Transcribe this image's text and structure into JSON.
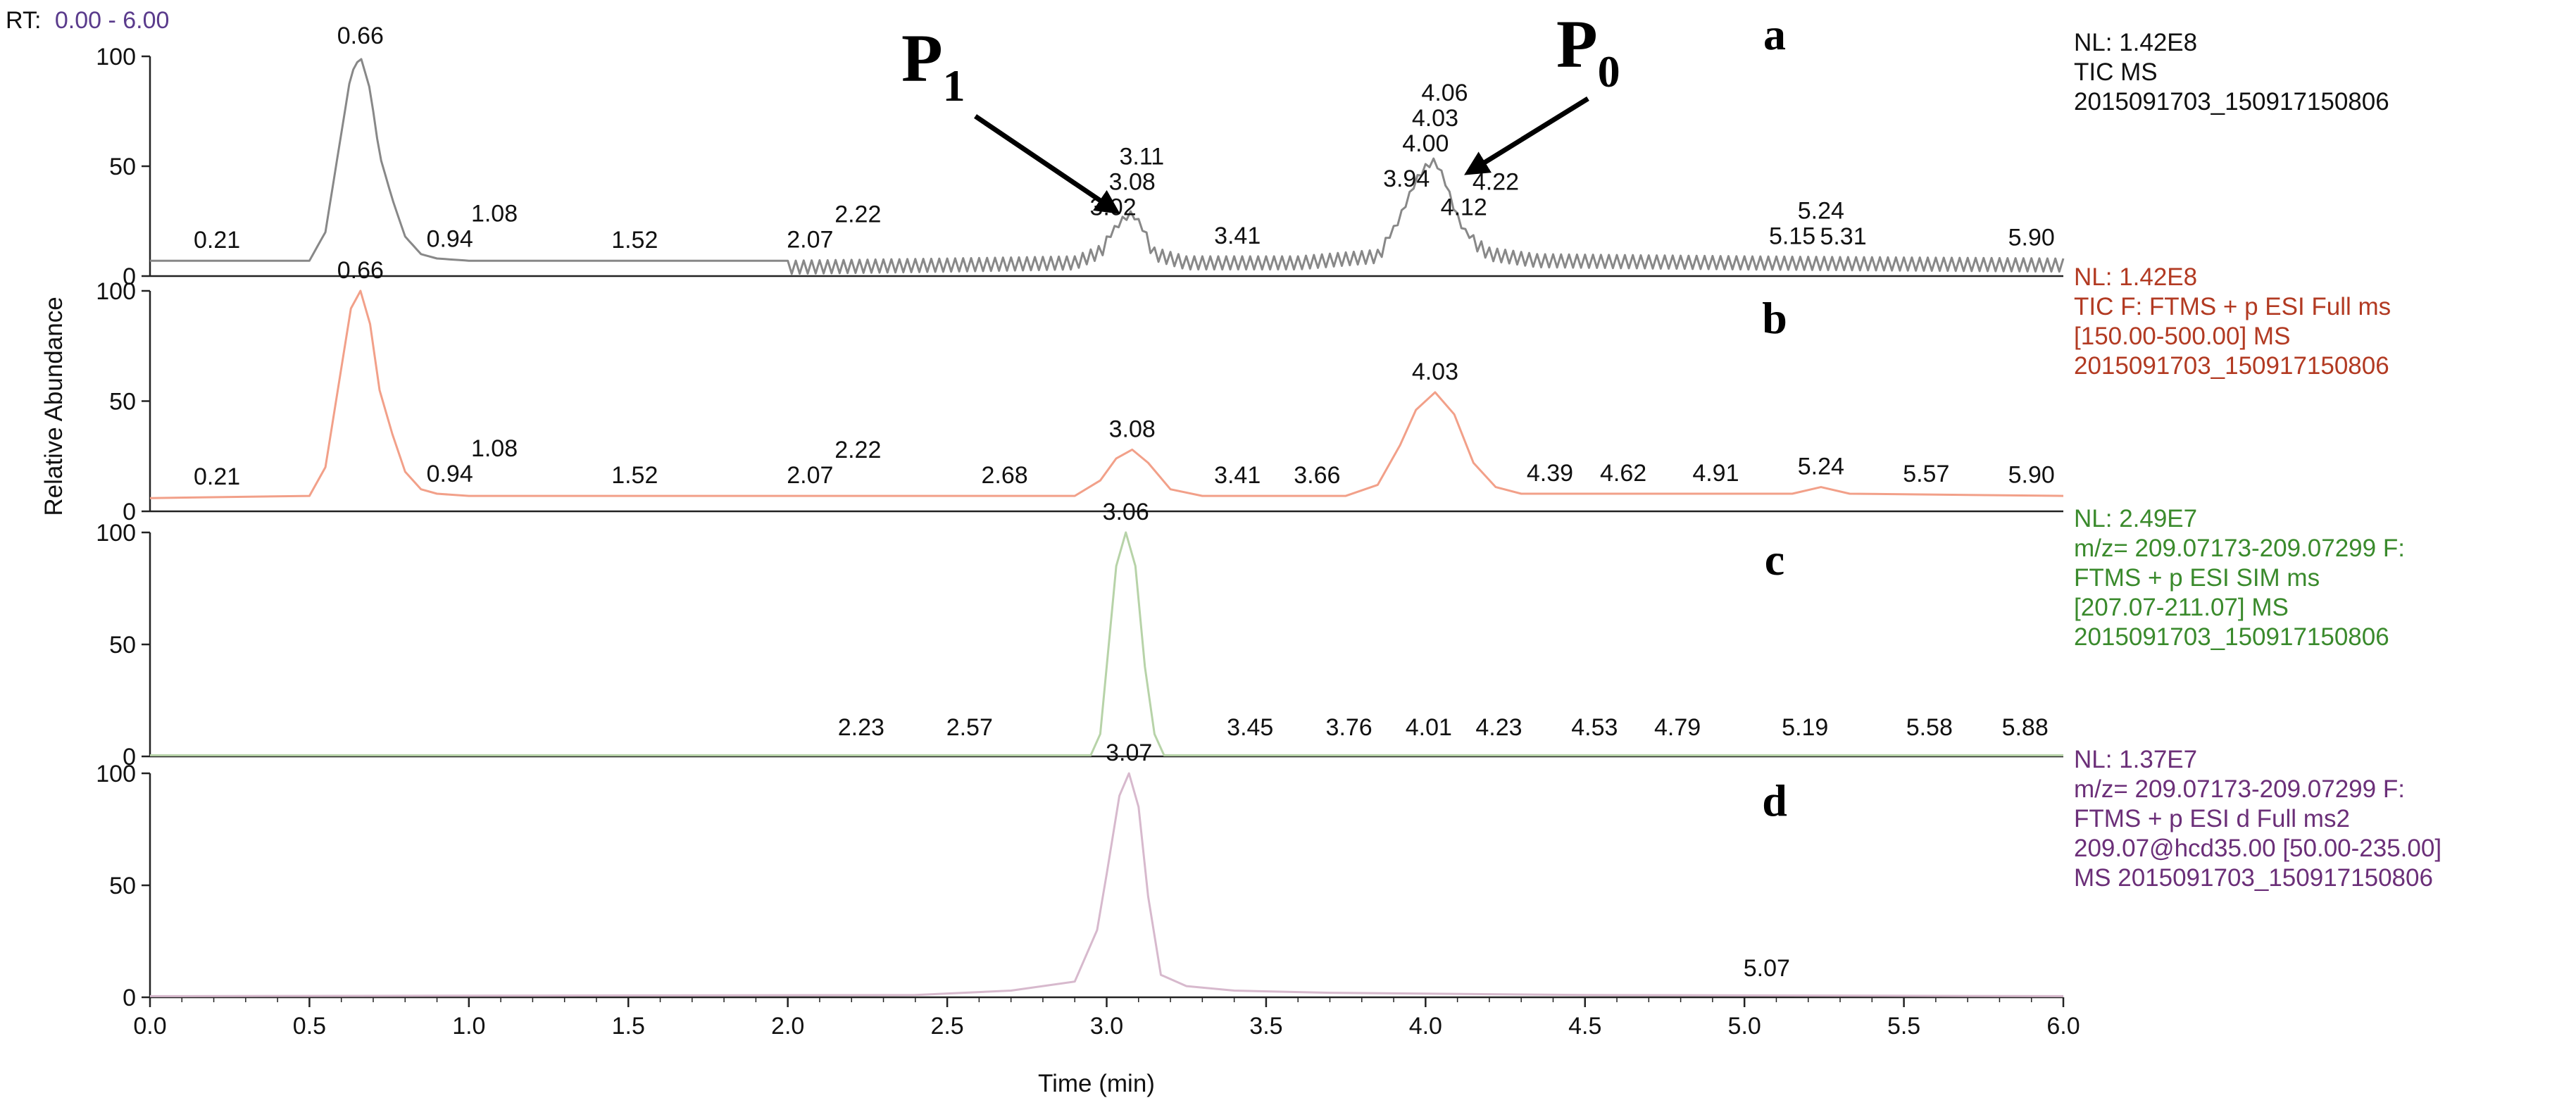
{
  "rt_label": "RT:",
  "rt_range": "0.00 - 6.00",
  "colors": {
    "a": "#888888",
    "b": "#f2a089",
    "c": "#b7d3a8",
    "d": "#d7b9cd",
    "text_b": "#b23a22",
    "text_c": "#3a8a2c",
    "text_d": "#6b2f78",
    "rt_value": "#5a3b8c",
    "axis": "#222222"
  },
  "chart_data": {
    "type": "line",
    "xlabel": "Time (min)",
    "ylabel": "Relative Abundance",
    "xlim": [
      0,
      6
    ],
    "ylim": [
      0,
      100
    ],
    "x_ticks": [
      "0.0",
      "0.5",
      "1.0",
      "1.5",
      "2.0",
      "2.5",
      "3.0",
      "3.5",
      "4.0",
      "4.5",
      "5.0",
      "5.5",
      "6.0"
    ],
    "y_ticks": [
      "0",
      "50",
      "100"
    ],
    "annotations": [
      {
        "text": "P",
        "subscript": "1",
        "points_to_x": 3.08
      },
      {
        "text": "P",
        "subscript": "0",
        "points_to_x": 4.03
      }
    ],
    "series": [
      {
        "letter": "a",
        "info": [
          "NL: 1.42E8",
          "TIC  MS",
          "2015091703_150917150806"
        ],
        "baseline": 7,
        "points": [
          [
            0.0,
            7
          ],
          [
            0.5,
            7
          ],
          [
            0.55,
            20
          ],
          [
            0.6,
            65
          ],
          [
            0.63,
            92
          ],
          [
            0.66,
            100
          ],
          [
            0.69,
            85
          ],
          [
            0.72,
            55
          ],
          [
            0.76,
            35
          ],
          [
            0.8,
            18
          ],
          [
            0.85,
            10
          ],
          [
            0.9,
            8
          ],
          [
            1.0,
            7
          ],
          [
            2.0,
            7
          ],
          [
            2.5,
            8
          ],
          [
            2.9,
            9
          ],
          [
            2.98,
            14
          ],
          [
            3.02,
            22
          ],
          [
            3.05,
            27
          ],
          [
            3.08,
            30
          ],
          [
            3.11,
            24
          ],
          [
            3.15,
            13
          ],
          [
            3.25,
            9
          ],
          [
            3.6,
            9
          ],
          [
            3.85,
            12
          ],
          [
            3.91,
            25
          ],
          [
            3.94,
            35
          ],
          [
            3.97,
            45
          ],
          [
            4.0,
            51
          ],
          [
            4.03,
            54
          ],
          [
            4.06,
            45
          ],
          [
            4.09,
            32
          ],
          [
            4.12,
            22
          ],
          [
            4.2,
            13
          ],
          [
            4.35,
            10
          ],
          [
            5.0,
            9
          ],
          [
            6.0,
            8
          ]
        ],
        "spiky_from": 2.0,
        "spike_amp": 6,
        "peaks": [
          [
            0.21,
            "0.21"
          ],
          [
            0.66,
            "0.66"
          ],
          [
            0.94,
            "0.94"
          ],
          [
            1.08,
            "1.08"
          ],
          [
            1.52,
            "1.52"
          ],
          [
            2.07,
            "2.07"
          ],
          [
            2.22,
            "2.22"
          ],
          [
            3.02,
            "3.02"
          ],
          [
            3.08,
            "3.08"
          ],
          [
            3.11,
            "3.11"
          ],
          [
            3.41,
            "3.41"
          ],
          [
            3.94,
            "3.94"
          ],
          [
            4.0,
            "4.00"
          ],
          [
            4.03,
            "4.03"
          ],
          [
            4.06,
            "4.06"
          ],
          [
            4.12,
            "4.12"
          ],
          [
            4.22,
            "4.22"
          ],
          [
            5.15,
            "5.15"
          ],
          [
            5.24,
            "5.24"
          ],
          [
            5.31,
            "5.31"
          ],
          [
            5.9,
            "5.90"
          ]
        ]
      },
      {
        "letter": "b",
        "info": [
          "NL: 1.42E8",
          "TIC F: FTMS + p ESI Full ms",
          "[150.00-500.00]  MS",
          "2015091703_150917150806"
        ],
        "baseline": 6,
        "points": [
          [
            0.0,
            6
          ],
          [
            0.5,
            7
          ],
          [
            0.55,
            20
          ],
          [
            0.6,
            65
          ],
          [
            0.63,
            92
          ],
          [
            0.66,
            100
          ],
          [
            0.69,
            85
          ],
          [
            0.72,
            55
          ],
          [
            0.76,
            35
          ],
          [
            0.8,
            18
          ],
          [
            0.85,
            10
          ],
          [
            0.9,
            8
          ],
          [
            1.0,
            7
          ],
          [
            2.9,
            7
          ],
          [
            2.98,
            14
          ],
          [
            3.03,
            24
          ],
          [
            3.08,
            28
          ],
          [
            3.13,
            22
          ],
          [
            3.2,
            10
          ],
          [
            3.3,
            7
          ],
          [
            3.75,
            7
          ],
          [
            3.85,
            12
          ],
          [
            3.92,
            30
          ],
          [
            3.97,
            46
          ],
          [
            4.03,
            54
          ],
          [
            4.09,
            44
          ],
          [
            4.15,
            22
          ],
          [
            4.22,
            11
          ],
          [
            4.3,
            8
          ],
          [
            5.15,
            8
          ],
          [
            5.24,
            11
          ],
          [
            5.33,
            8
          ],
          [
            6.0,
            7
          ]
        ],
        "peaks": [
          [
            0.21,
            "0.21"
          ],
          [
            0.66,
            "0.66"
          ],
          [
            0.94,
            "0.94"
          ],
          [
            1.08,
            "1.08"
          ],
          [
            1.52,
            "1.52"
          ],
          [
            2.07,
            "2.07"
          ],
          [
            2.22,
            "2.22"
          ],
          [
            2.68,
            "2.68"
          ],
          [
            3.08,
            "3.08"
          ],
          [
            3.41,
            "3.41"
          ],
          [
            3.66,
            "3.66"
          ],
          [
            4.03,
            "4.03"
          ],
          [
            4.39,
            "4.39"
          ],
          [
            4.62,
            "4.62"
          ],
          [
            4.91,
            "4.91"
          ],
          [
            5.24,
            "5.24"
          ],
          [
            5.57,
            "5.57"
          ],
          [
            5.9,
            "5.90"
          ]
        ]
      },
      {
        "letter": "c",
        "info": [
          "NL: 2.49E7",
          "m/z= 209.07173-209.07299 F:",
          "FTMS + p ESI SIM ms",
          "[207.07-211.07]  MS",
          "2015091703_150917150806"
        ],
        "baseline": 0.5,
        "points": [
          [
            0.0,
            0.5
          ],
          [
            2.95,
            0.5
          ],
          [
            2.98,
            10
          ],
          [
            3.0,
            40
          ],
          [
            3.03,
            85
          ],
          [
            3.06,
            100
          ],
          [
            3.09,
            85
          ],
          [
            3.12,
            40
          ],
          [
            3.15,
            10
          ],
          [
            3.18,
            0.5
          ],
          [
            6.0,
            0.5
          ]
        ],
        "peaks": [
          [
            2.23,
            "2.23"
          ],
          [
            2.57,
            "2.57"
          ],
          [
            3.06,
            "3.06"
          ],
          [
            3.45,
            "3.45"
          ],
          [
            3.76,
            "3.76"
          ],
          [
            4.01,
            "4.01"
          ],
          [
            4.23,
            "4.23"
          ],
          [
            4.53,
            "4.53"
          ],
          [
            4.79,
            "4.79"
          ],
          [
            5.19,
            "5.19"
          ],
          [
            5.58,
            "5.58"
          ],
          [
            5.88,
            "5.88"
          ]
        ]
      },
      {
        "letter": "d",
        "info": [
          "NL: 1.37E7",
          "m/z= 209.07173-209.07299 F:",
          "FTMS + p ESI d Full ms2",
          "209.07@hcd35.00 [50.00-235.00]",
          "MS 2015091703_150917150806"
        ],
        "baseline": 0.5,
        "points": [
          [
            0.0,
            0.5
          ],
          [
            2.4,
            1
          ],
          [
            2.7,
            3
          ],
          [
            2.9,
            7
          ],
          [
            2.97,
            30
          ],
          [
            3.0,
            55
          ],
          [
            3.04,
            90
          ],
          [
            3.07,
            100
          ],
          [
            3.1,
            85
          ],
          [
            3.13,
            45
          ],
          [
            3.17,
            10
          ],
          [
            3.25,
            5
          ],
          [
            3.4,
            3
          ],
          [
            3.7,
            2
          ],
          [
            4.5,
            1
          ],
          [
            6.0,
            0.5
          ]
        ],
        "peaks": [
          [
            3.07,
            "3.07"
          ],
          [
            5.07,
            "5.07"
          ]
        ]
      }
    ]
  }
}
